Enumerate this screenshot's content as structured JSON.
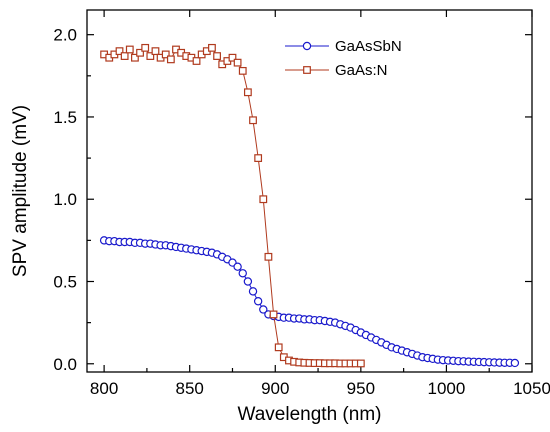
{
  "chart_data": {
    "type": "scatter",
    "xlabel": "Wavelength (nm)",
    "ylabel": "SPV amplitude (mV)",
    "xlim": [
      790,
      1050
    ],
    "ylim": [
      -0.05,
      2.15
    ],
    "xticks": [
      800,
      850,
      900,
      950,
      1000,
      1050
    ],
    "yticks": [
      0.0,
      0.5,
      1.0,
      1.5,
      2.0
    ],
    "xtick_labels": [
      "800",
      "850",
      "900",
      "950",
      "1000",
      "1050"
    ],
    "ytick_labels": [
      "0.0",
      "0.5",
      "1.0",
      "1.5",
      "2.0"
    ],
    "grid": false,
    "legend_position": "top-right",
    "series": [
      {
        "name": "GaAsSbN",
        "marker": "circle",
        "color": "#1a1acc",
        "x": [
          800,
          803,
          806,
          809,
          812,
          815,
          818,
          821,
          824,
          827,
          830,
          833,
          836,
          839,
          842,
          845,
          848,
          851,
          854,
          857,
          860,
          863,
          866,
          869,
          872,
          875,
          878,
          881,
          884,
          887,
          890,
          893,
          896,
          899,
          902,
          905,
          908,
          911,
          914,
          917,
          920,
          923,
          926,
          929,
          932,
          935,
          938,
          941,
          944,
          947,
          950,
          953,
          956,
          959,
          962,
          965,
          968,
          971,
          974,
          977,
          980,
          983,
          986,
          989,
          992,
          995,
          998,
          1001,
          1004,
          1007,
          1010,
          1013,
          1016,
          1019,
          1022,
          1025,
          1028,
          1031,
          1034,
          1037,
          1040
        ],
        "y": [
          0.75,
          0.745,
          0.745,
          0.74,
          0.74,
          0.74,
          0.735,
          0.735,
          0.73,
          0.73,
          0.725,
          0.72,
          0.72,
          0.715,
          0.71,
          0.705,
          0.7,
          0.695,
          0.69,
          0.685,
          0.68,
          0.675,
          0.665,
          0.65,
          0.635,
          0.615,
          0.59,
          0.55,
          0.5,
          0.44,
          0.38,
          0.33,
          0.3,
          0.29,
          0.285,
          0.28,
          0.28,
          0.275,
          0.275,
          0.27,
          0.27,
          0.265,
          0.265,
          0.26,
          0.255,
          0.25,
          0.24,
          0.23,
          0.22,
          0.205,
          0.19,
          0.175,
          0.16,
          0.145,
          0.13,
          0.115,
          0.1,
          0.09,
          0.08,
          0.07,
          0.06,
          0.05,
          0.04,
          0.035,
          0.03,
          0.025,
          0.022,
          0.02,
          0.018,
          0.016,
          0.015,
          0.013,
          0.012,
          0.011,
          0.01,
          0.009,
          0.008,
          0.007,
          0.006,
          0.006,
          0.005
        ]
      },
      {
        "name": "GaAs:N",
        "marker": "square",
        "color": "#b03a1e",
        "x": [
          800,
          803,
          806,
          809,
          812,
          815,
          818,
          821,
          824,
          827,
          830,
          833,
          836,
          839,
          842,
          845,
          848,
          851,
          854,
          857,
          860,
          863,
          866,
          869,
          872,
          875,
          878,
          881,
          884,
          887,
          890,
          893,
          896,
          899,
          902,
          905,
          908,
          911,
          914,
          917,
          920,
          923,
          926,
          929,
          932,
          935,
          938,
          941,
          944,
          947,
          950
        ],
        "y": [
          1.88,
          1.86,
          1.88,
          1.9,
          1.87,
          1.91,
          1.86,
          1.89,
          1.92,
          1.87,
          1.9,
          1.86,
          1.88,
          1.85,
          1.91,
          1.89,
          1.87,
          1.86,
          1.84,
          1.88,
          1.9,
          1.92,
          1.87,
          1.82,
          1.84,
          1.86,
          1.83,
          1.78,
          1.65,
          1.48,
          1.25,
          1.0,
          0.65,
          0.3,
          0.1,
          0.04,
          0.02,
          0.012,
          0.008,
          0.006,
          0.005,
          0.004,
          0.004,
          0.003,
          0.003,
          0.003,
          0.002,
          0.002,
          0.002,
          0.002,
          0.002
        ]
      }
    ]
  }
}
